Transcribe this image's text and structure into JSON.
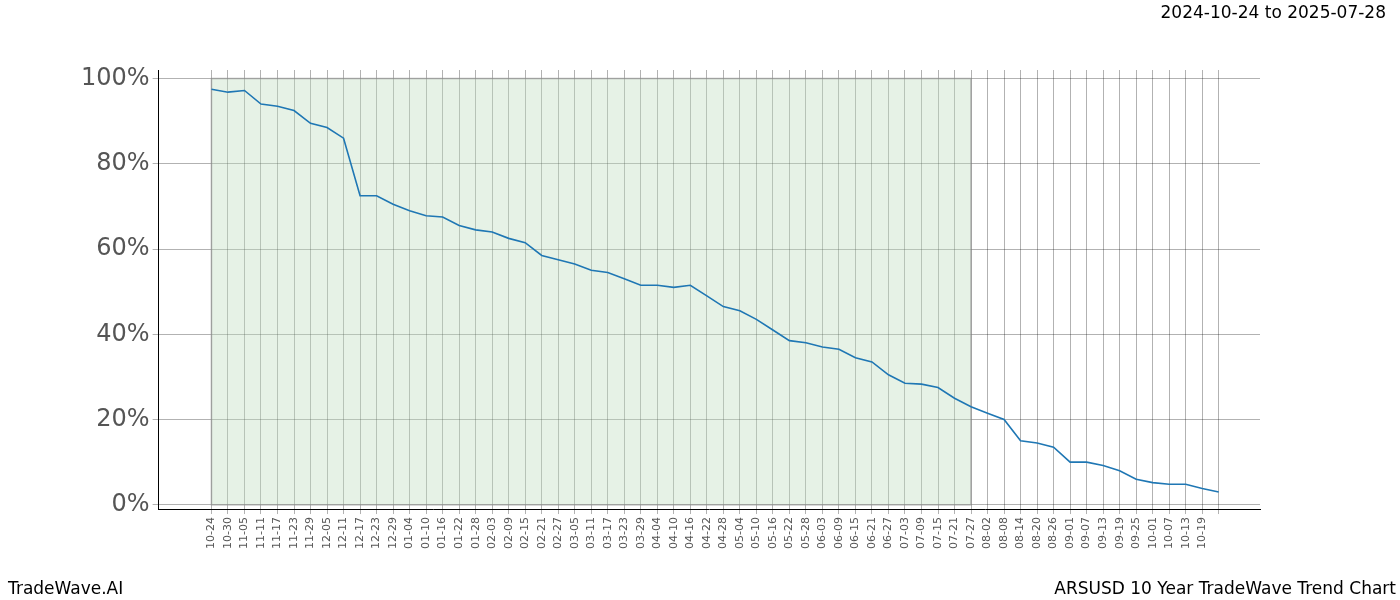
{
  "chart_data": {
    "type": "line",
    "title": "2024-10-24 to 2025-07-28",
    "annotations": [
      "TradeWave.AI",
      "ARSUSD 10 Year TradeWave Trend Chart"
    ],
    "categories": [
      "10-24",
      "10-30",
      "11-05",
      "11-11",
      "11-17",
      "11-23",
      "11-29",
      "12-05",
      "12-11",
      "12-17",
      "12-23",
      "12-29",
      "01-04",
      "01-10",
      "01-16",
      "01-22",
      "01-28",
      "02-03",
      "02-09",
      "02-15",
      "02-21",
      "02-27",
      "03-05",
      "03-11",
      "03-17",
      "03-23",
      "03-29",
      "04-04",
      "04-10",
      "04-16",
      "04-22",
      "04-28",
      "05-04",
      "05-10",
      "05-16",
      "05-22",
      "05-28",
      "06-03",
      "06-09",
      "06-15",
      "06-21",
      "06-27",
      "07-03",
      "07-09",
      "07-15",
      "07-21",
      "07-27",
      "08-02",
      "08-08",
      "08-14",
      "08-20",
      "08-26",
      "09-01",
      "09-07",
      "09-13",
      "09-19",
      "09-25",
      "10-01",
      "10-07",
      "10-13",
      "10-19",
      null
    ],
    "values": [
      97.5,
      96.8,
      97.2,
      94,
      93.5,
      92.5,
      89.5,
      88.5,
      86,
      72.5,
      72.5,
      70.5,
      69,
      67.8,
      67.5,
      65.5,
      64.5,
      64,
      62.5,
      61.5,
      58.5,
      57.5,
      56.5,
      55,
      54.5,
      53,
      51.5,
      51.5,
      51,
      51.5,
      49,
      46.5,
      45.5,
      43.5,
      41,
      38.5,
      38,
      37,
      36.5,
      34.5,
      33.5,
      30.5,
      28.5,
      28.3,
      27.5,
      25,
      23,
      21.5,
      20,
      15,
      14.5,
      13.5,
      10,
      10,
      9.2,
      8,
      6,
      5.2,
      4.8,
      4.8,
      3.8,
      3
    ],
    "color": "#1f77b4",
    "span": [
      "10-24",
      "07-27"
    ],
    "ylim": [
      -1,
      102
    ],
    "yticks": [
      {
        "value": 0,
        "label": "0%"
      },
      {
        "value": 20,
        "label": "20%"
      },
      {
        "value": 40,
        "label": "40%"
      },
      {
        "value": 60,
        "label": "60%"
      },
      {
        "value": 80,
        "label": "80%"
      },
      {
        "value": 100,
        "label": "100%"
      }
    ],
    "grid": true
  }
}
